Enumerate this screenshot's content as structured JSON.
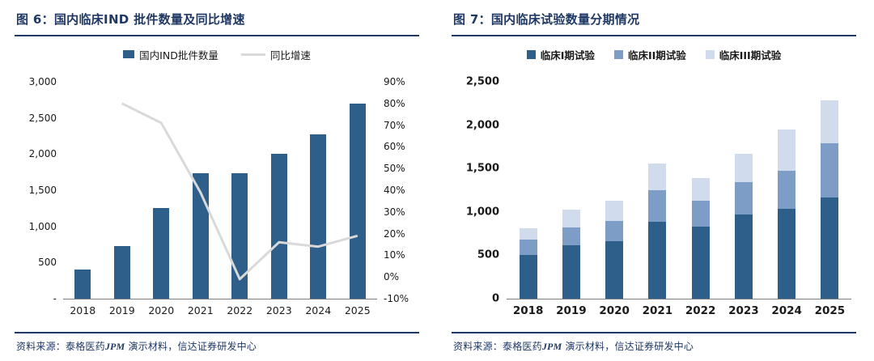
{
  "colors": {
    "navy": "#1f3864",
    "bar_primary": "#2e5f8b",
    "bar_phase2": "#7d9cc6",
    "bar_phase3": "#d0dcec",
    "line_growth": "#d9d9d9",
    "axis": "#808080",
    "label": "#1a1a1a"
  },
  "source": {
    "prefix": "资料来源：",
    "org": "泰格医药",
    "jpm": "JPM",
    "rest": " 演示材料，信达证券研发中心"
  },
  "chart_data": [
    {
      "type": "bar",
      "variant": "column-with-line-dual-axis",
      "title": "图 6：国内临床IND 批件数量及同比增速",
      "categories": [
        "2018",
        "2019",
        "2020",
        "2021",
        "2022",
        "2023",
        "2024",
        "2025"
      ],
      "series": [
        {
          "name": "国内IND批件数量",
          "type": "bar",
          "axis": "left",
          "values": [
            400,
            730,
            1250,
            1740,
            1730,
            2000,
            2270,
            2700
          ]
        },
        {
          "name": "同比增速",
          "type": "line",
          "axis": "right",
          "values_pct": [
            null,
            80,
            71,
            39,
            -1,
            16,
            14,
            19
          ]
        }
      ],
      "left_axis": {
        "min": 0,
        "max": 3000,
        "step": 500,
        "tick_labels": [
          "3,000",
          "2,500",
          "2,000",
          "1,500",
          "1,000",
          "500",
          "-"
        ]
      },
      "right_axis": {
        "min": -10,
        "max": 90,
        "step": 10,
        "tick_labels": [
          "90%",
          "80%",
          "70%",
          "60%",
          "50%",
          "40%",
          "30%",
          "20%",
          "10%",
          "0%",
          "-10%"
        ]
      },
      "legend_position": "top",
      "grid": false
    },
    {
      "type": "bar",
      "variant": "stacked-column",
      "title": "图 7：国内临床试验数量分期情况",
      "categories": [
        "2018",
        "2019",
        "2020",
        "2021",
        "2022",
        "2023",
        "2024",
        "2025"
      ],
      "series": [
        {
          "name": "临床I期试验",
          "values": [
            500,
            620,
            660,
            890,
            830,
            970,
            1040,
            1170
          ]
        },
        {
          "name": "临床II期试验",
          "values": [
            180,
            200,
            240,
            360,
            300,
            370,
            430,
            620
          ]
        },
        {
          "name": "临床III期试验",
          "values": [
            130,
            210,
            230,
            310,
            260,
            330,
            480,
            500
          ]
        }
      ],
      "y_axis": {
        "min": 0,
        "max": 2500,
        "step": 500,
        "tick_labels": [
          "2,500",
          "2,000",
          "1,500",
          "1,000",
          "500",
          "0"
        ]
      },
      "legend_position": "top",
      "grid": false
    }
  ]
}
